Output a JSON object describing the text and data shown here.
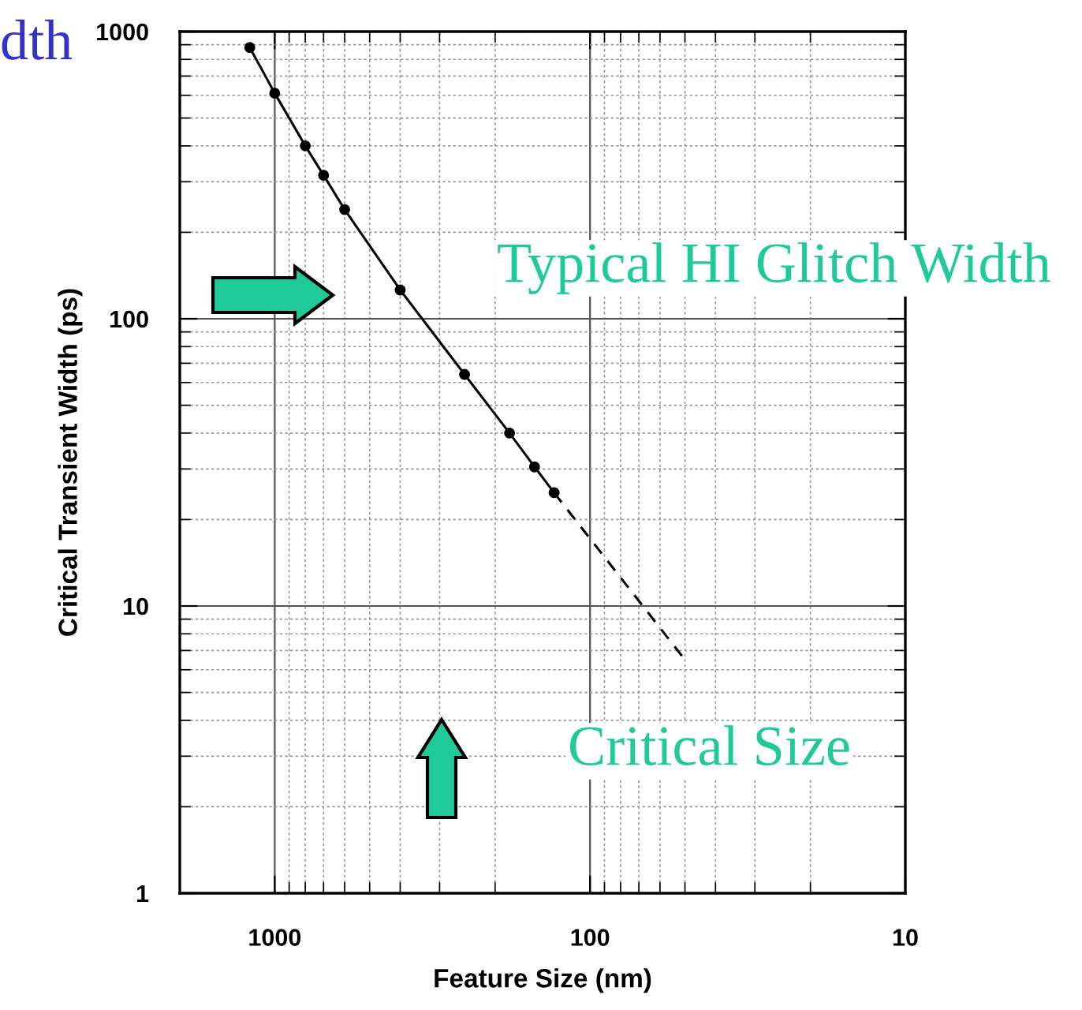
{
  "chart_data": {
    "type": "line",
    "xlabel": "Feature Size (nm)",
    "ylabel": "Critical Transient Width (ps)",
    "log": "xy",
    "xlim": [
      2000,
      10
    ],
    "xticks": [
      1000,
      100,
      10
    ],
    "ylim": [
      1,
      1000
    ],
    "yticks": [
      1,
      10,
      100,
      1000
    ],
    "grid": true,
    "series": [
      {
        "color": "#000000",
        "marker": "circle",
        "line_style": "solid",
        "x": [
          1200,
          1000,
          800,
          700,
          600,
          400,
          250,
          180,
          150,
          130
        ],
        "values": [
          880,
          610,
          400,
          316,
          240,
          126,
          64,
          40,
          30.5,
          24.8
        ]
      },
      {
        "color": "#000000",
        "marker": "none",
        "line_style": "dashed",
        "x": [
          130,
          50
        ],
        "values": [
          24.8,
          6.5
        ]
      }
    ],
    "annotations": [
      "dth",
      "Typical HI Glitch Width",
      "Critical Size"
    ]
  }
}
